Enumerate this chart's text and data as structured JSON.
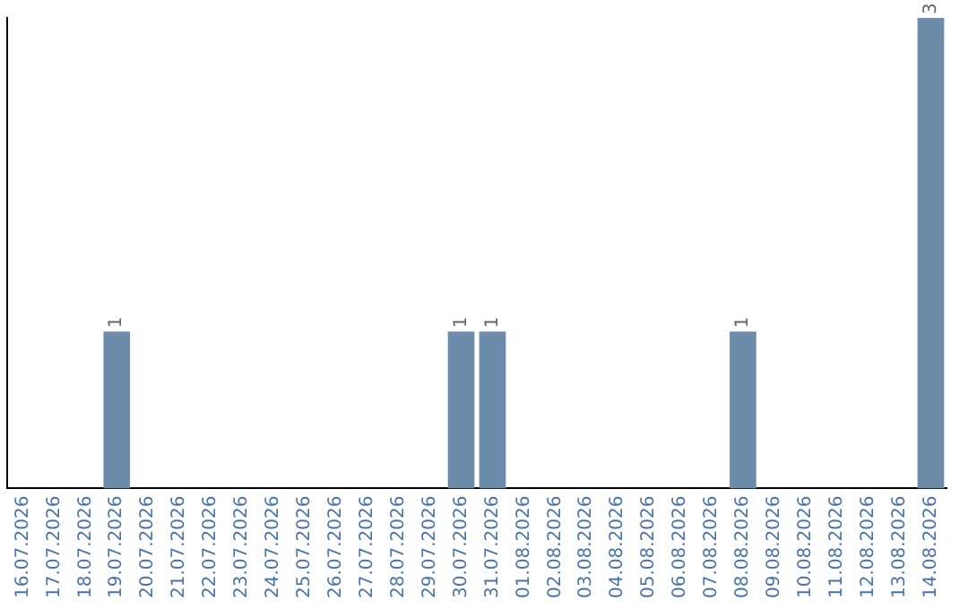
{
  "chart_data": {
    "type": "bar",
    "categories": [
      "16.07.2026",
      "17.07.2026",
      "18.07.2026",
      "19.07.2026",
      "20.07.2026",
      "21.07.2026",
      "22.07.2026",
      "23.07.2026",
      "24.07.2026",
      "25.07.2026",
      "26.07.2026",
      "27.07.2026",
      "28.07.2026",
      "29.07.2026",
      "30.07.2026",
      "31.07.2026",
      "01.08.2026",
      "02.08.2026",
      "03.08.2026",
      "04.08.2026",
      "05.08.2026",
      "06.08.2026",
      "07.08.2026",
      "08.08.2026",
      "09.08.2026",
      "10.08.2026",
      "11.08.2026",
      "12.08.2026",
      "13.08.2026",
      "14.08.2026"
    ],
    "values": [
      0,
      0,
      0,
      1,
      0,
      0,
      0,
      0,
      0,
      0,
      0,
      0,
      0,
      0,
      1,
      1,
      0,
      0,
      0,
      0,
      0,
      0,
      0,
      1,
      0,
      0,
      0,
      0,
      0,
      3
    ],
    "value_labels": [
      null,
      null,
      null,
      "1",
      null,
      null,
      null,
      null,
      null,
      null,
      null,
      null,
      null,
      null,
      "1",
      "1",
      null,
      null,
      null,
      null,
      null,
      null,
      null,
      "1",
      null,
      null,
      null,
      null,
      null,
      "3"
    ],
    "color": "#6d8caa",
    "grid": false,
    "legend": false,
    "tick_labels": "x"
  }
}
